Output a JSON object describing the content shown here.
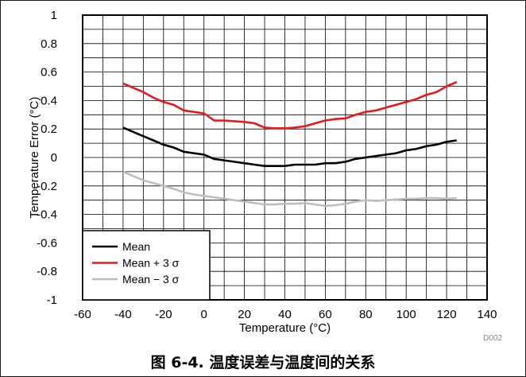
{
  "figure_code": "D002",
  "caption": "图 6-4. 温度误差与温度间的关系",
  "chart_data": {
    "type": "line",
    "title": "",
    "xlabel": "Temperature (°C)",
    "ylabel": "Temperature Error (°C)",
    "xlim": [
      -60,
      140
    ],
    "ylim": [
      -1,
      1
    ],
    "x_major_ticks": [
      -60,
      -40,
      -20,
      0,
      20,
      40,
      60,
      80,
      100,
      120,
      140
    ],
    "x_tick_labels": [
      "-60",
      "-40",
      "-20",
      "0",
      "20",
      "40",
      "60",
      "80",
      "100",
      "120",
      "140"
    ],
    "y_major_ticks": [
      -1,
      -0.8,
      -0.6,
      -0.4,
      -0.2,
      0,
      0.2,
      0.4,
      0.6,
      0.8,
      1
    ],
    "y_tick_labels": [
      "-1",
      "-0.8",
      "-0.6",
      "-0.4",
      "-0.2",
      "0",
      "0.2",
      "0.4",
      "0.6",
      "0.8",
      "1"
    ],
    "x_minor_step": 10,
    "y_minor_step": 0.1,
    "grid": true,
    "legend_position": "bottom-left",
    "series": [
      {
        "name": "Mean",
        "color": "#000000",
        "x": [
          -40,
          -35,
          -30,
          -25,
          -20,
          -15,
          -10,
          -5,
          0,
          5,
          10,
          15,
          20,
          25,
          30,
          35,
          40,
          45,
          50,
          55,
          60,
          65,
          70,
          75,
          80,
          85,
          90,
          95,
          100,
          105,
          110,
          115,
          120,
          125
        ],
        "y": [
          0.21,
          0.18,
          0.15,
          0.12,
          0.09,
          0.07,
          0.04,
          0.03,
          0.02,
          -0.01,
          -0.02,
          -0.03,
          -0.04,
          -0.05,
          -0.06,
          -0.06,
          -0.06,
          -0.05,
          -0.05,
          -0.05,
          -0.04,
          -0.04,
          -0.03,
          -0.01,
          0.0,
          0.01,
          0.02,
          0.03,
          0.05,
          0.06,
          0.08,
          0.09,
          0.11,
          0.12
        ]
      },
      {
        "name": "Mean + 3 σ",
        "color": "#e8191c",
        "x": [
          -40,
          -35,
          -30,
          -25,
          -20,
          -15,
          -10,
          -5,
          0,
          5,
          10,
          15,
          20,
          25,
          30,
          35,
          40,
          45,
          50,
          55,
          60,
          65,
          70,
          75,
          80,
          85,
          90,
          95,
          100,
          105,
          110,
          115,
          120,
          125
        ],
        "y": [
          0.52,
          0.49,
          0.46,
          0.42,
          0.39,
          0.37,
          0.33,
          0.32,
          0.31,
          0.26,
          0.26,
          0.255,
          0.25,
          0.24,
          0.21,
          0.205,
          0.205,
          0.21,
          0.22,
          0.24,
          0.26,
          0.27,
          0.275,
          0.3,
          0.32,
          0.33,
          0.35,
          0.37,
          0.39,
          0.41,
          0.44,
          0.46,
          0.5,
          0.53
        ]
      },
      {
        "name": "Mean − 3 σ",
        "color": "#bebebe",
        "x": [
          -40,
          -35,
          -30,
          -25,
          -20,
          -15,
          -10,
          -5,
          0,
          5,
          10,
          15,
          20,
          25,
          30,
          35,
          40,
          45,
          50,
          55,
          60,
          65,
          70,
          75,
          80,
          85,
          90,
          95,
          100,
          105,
          110,
          115,
          120,
          125
        ],
        "y": [
          -0.1,
          -0.13,
          -0.16,
          -0.18,
          -0.2,
          -0.22,
          -0.245,
          -0.26,
          -0.27,
          -0.28,
          -0.29,
          -0.3,
          -0.31,
          -0.32,
          -0.33,
          -0.33,
          -0.325,
          -0.325,
          -0.32,
          -0.33,
          -0.34,
          -0.335,
          -0.325,
          -0.31,
          -0.3,
          -0.305,
          -0.3,
          -0.295,
          -0.29,
          -0.29,
          -0.285,
          -0.285,
          -0.29,
          -0.285
        ]
      }
    ]
  }
}
